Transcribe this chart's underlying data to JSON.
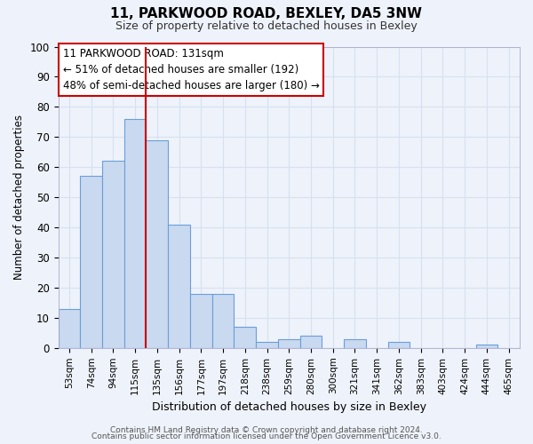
{
  "title": "11, PARKWOOD ROAD, BEXLEY, DA5 3NW",
  "subtitle": "Size of property relative to detached houses in Bexley",
  "xlabel": "Distribution of detached houses by size in Bexley",
  "ylabel": "Number of detached properties",
  "bar_labels": [
    "53sqm",
    "74sqm",
    "94sqm",
    "115sqm",
    "135sqm",
    "156sqm",
    "177sqm",
    "197sqm",
    "218sqm",
    "238sqm",
    "259sqm",
    "280sqm",
    "300sqm",
    "321sqm",
    "341sqm",
    "362sqm",
    "383sqm",
    "403sqm",
    "424sqm",
    "444sqm",
    "465sqm"
  ],
  "bar_values": [
    13,
    57,
    62,
    76,
    69,
    41,
    18,
    18,
    7,
    2,
    3,
    4,
    0,
    3,
    0,
    2,
    0,
    0,
    0,
    1,
    0
  ],
  "bar_color": "#c9d9f0",
  "bar_edge_color": "#6a9fd8",
  "vline_color": "#cc0000",
  "ylim": [
    0,
    100
  ],
  "yticks": [
    0,
    10,
    20,
    30,
    40,
    50,
    60,
    70,
    80,
    90,
    100
  ],
  "annotation_title": "11 PARKWOOD ROAD: 131sqm",
  "annotation_line1": "← 51% of detached houses are smaller (192)",
  "annotation_line2": "48% of semi-detached houses are larger (180) →",
  "annotation_box_color": "#cc0000",
  "footer1": "Contains HM Land Registry data © Crown copyright and database right 2024.",
  "footer2": "Contains public sector information licensed under the Open Government Licence v3.0.",
  "background_color": "#eef2fa",
  "grid_color": "#d8e0f0",
  "plot_bg_color": "#eef2fa"
}
